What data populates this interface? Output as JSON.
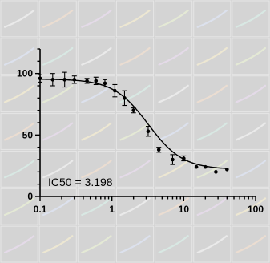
{
  "colors": {
    "background": "#d4d4d4",
    "cell_border": "#e6e6e6",
    "ink": "#000000",
    "faint_line_palette": [
      "#f2f2f2",
      "#e9f0d5",
      "#f3e0d0",
      "#dfe6f5",
      "#e9dcef",
      "#d9efe8",
      "#f5eed1"
    ]
  },
  "chart_data": {
    "type": "scatter",
    "xscale": "log",
    "xlim": [
      0.1,
      100
    ],
    "ylim": [
      0,
      120
    ],
    "xticks": [
      0.1,
      1,
      10,
      100
    ],
    "xtick_labels": [
      "0.1",
      "1",
      "10",
      "100"
    ],
    "yticks": [
      0,
      50,
      100
    ],
    "ytick_labels": [
      "0",
      "50",
      "100"
    ],
    "series": [
      {
        "x": [
          0.1,
          0.15,
          0.22,
          0.3,
          0.45,
          0.6,
          0.8,
          1.1,
          1.5,
          2,
          3.2,
          4.5,
          7,
          10,
          15,
          20,
          28,
          40
        ],
        "y": [
          96,
          95,
          95,
          95,
          94,
          94,
          92,
          86,
          80,
          70,
          53,
          38,
          30,
          31,
          24,
          24,
          20,
          22
        ],
        "err": [
          3,
          5,
          6,
          3,
          2,
          3,
          3,
          5,
          6,
          2,
          4,
          2,
          4,
          2,
          0,
          0,
          0,
          0
        ]
      }
    ],
    "fit": {
      "top": 95.5,
      "bottom": 22,
      "ic50": 3.198,
      "hill": 1.8
    },
    "annotation": "IC50 = 3.198",
    "grid": false
  }
}
